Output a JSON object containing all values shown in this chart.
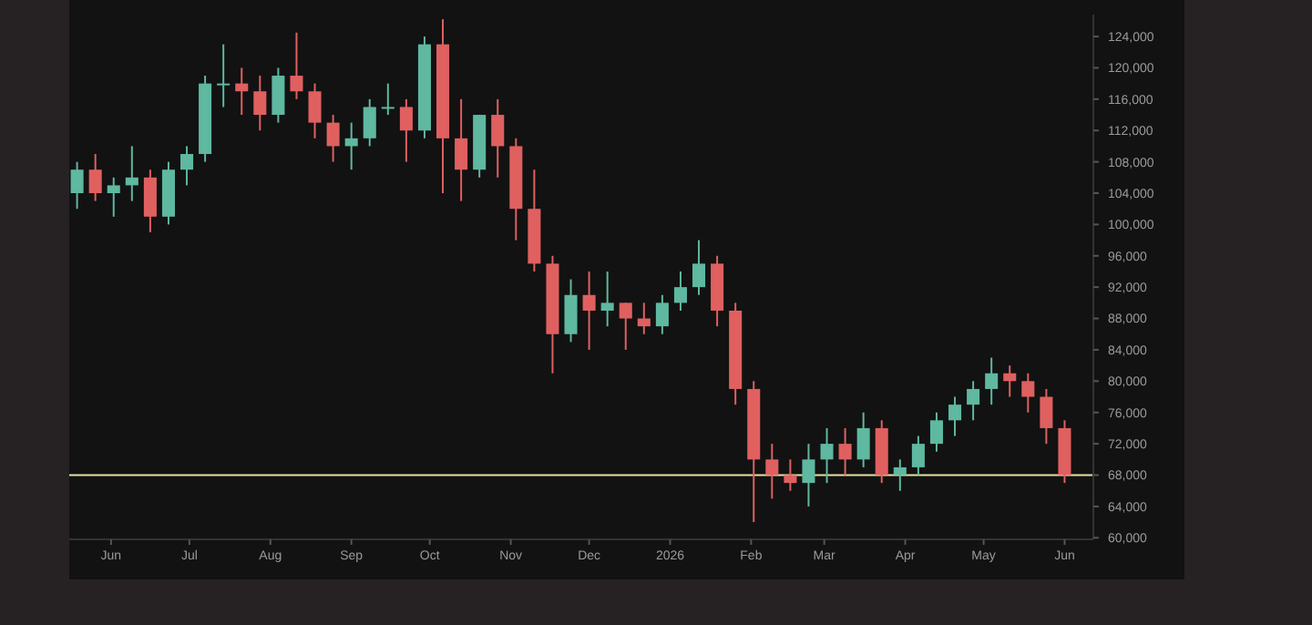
{
  "chart_data": {
    "type": "candlestick",
    "x": [
      "2025-05-19",
      "2025-05-26",
      "2025-06-02",
      "2025-06-09",
      "2025-06-16",
      "2025-06-23",
      "2025-06-30",
      "2025-07-07",
      "2025-07-14",
      "2025-07-21",
      "2025-07-28",
      "2025-08-04",
      "2025-08-11",
      "2025-08-18",
      "2025-08-25",
      "2025-09-01",
      "2025-09-08",
      "2025-09-15",
      "2025-09-22",
      "2025-09-29",
      "2025-10-06",
      "2025-10-13",
      "2025-10-20",
      "2025-10-27",
      "2025-11-03",
      "2025-11-10",
      "2025-11-17",
      "2025-11-24",
      "2025-12-01",
      "2025-12-08",
      "2025-12-15",
      "2025-12-22",
      "2025-12-29",
      "2026-01-05",
      "2026-01-12",
      "2026-01-19",
      "2026-01-26",
      "2026-02-02",
      "2026-02-09",
      "2026-02-16",
      "2026-02-23",
      "2026-03-02",
      "2026-03-09",
      "2026-03-16",
      "2026-03-23",
      "2026-03-30",
      "2026-04-06",
      "2026-04-13",
      "2026-04-20",
      "2026-04-27",
      "2026-05-04",
      "2026-05-11",
      "2026-05-18",
      "2026-05-25",
      "2026-06-01"
    ],
    "ohlc": [
      [
        104000,
        108000,
        102000,
        107000
      ],
      [
        107000,
        109000,
        103000,
        104000
      ],
      [
        104000,
        106000,
        101000,
        105000
      ],
      [
        105000,
        110000,
        103000,
        106000
      ],
      [
        106000,
        107000,
        99000,
        101000
      ],
      [
        101000,
        108000,
        100000,
        107000
      ],
      [
        107000,
        110000,
        105000,
        109000
      ],
      [
        109000,
        119000,
        108000,
        118000
      ],
      [
        118000,
        123000,
        115000,
        118000
      ],
      [
        118000,
        120000,
        114000,
        117000
      ],
      [
        117000,
        119000,
        112000,
        114000
      ],
      [
        114000,
        120000,
        113000,
        119000
      ],
      [
        119000,
        124500,
        116000,
        117000
      ],
      [
        117000,
        118000,
        111000,
        113000
      ],
      [
        113000,
        114000,
        108000,
        110000
      ],
      [
        110000,
        113000,
        107000,
        111000
      ],
      [
        111000,
        116000,
        110000,
        115000
      ],
      [
        115000,
        118000,
        114000,
        115000
      ],
      [
        115000,
        116000,
        108000,
        112000
      ],
      [
        112000,
        124000,
        111000,
        123000
      ],
      [
        123000,
        126200,
        104000,
        111000
      ],
      [
        111000,
        116000,
        103000,
        107000
      ],
      [
        107000,
        114000,
        106000,
        114000
      ],
      [
        114000,
        116000,
        106000,
        110000
      ],
      [
        110000,
        111000,
        98000,
        102000
      ],
      [
        102000,
        107000,
        94000,
        95000
      ],
      [
        95000,
        96000,
        81000,
        86000
      ],
      [
        86000,
        93000,
        85000,
        91000
      ],
      [
        91000,
        94000,
        84000,
        89000
      ],
      [
        89000,
        94000,
        87000,
        90000
      ],
      [
        90000,
        90000,
        84000,
        88000
      ],
      [
        88000,
        90000,
        86000,
        87000
      ],
      [
        87000,
        91000,
        86000,
        90000
      ],
      [
        90000,
        94000,
        89000,
        92000
      ],
      [
        92000,
        98000,
        91000,
        95000
      ],
      [
        95000,
        96000,
        87000,
        89000
      ],
      [
        89000,
        90000,
        77000,
        79000
      ],
      [
        79000,
        80000,
        62000,
        70000
      ],
      [
        70000,
        72000,
        65000,
        68000
      ],
      [
        68000,
        70000,
        66000,
        67000
      ],
      [
        67000,
        72000,
        64000,
        70000
      ],
      [
        70000,
        74000,
        67000,
        72000
      ],
      [
        72000,
        74000,
        68000,
        70000
      ],
      [
        70000,
        76000,
        69000,
        74000
      ],
      [
        74000,
        75000,
        67000,
        68000
      ],
      [
        68000,
        70000,
        66000,
        69000
      ],
      [
        69000,
        73000,
        68000,
        72000
      ],
      [
        72000,
        76000,
        71000,
        75000
      ],
      [
        75000,
        78000,
        73000,
        77000
      ],
      [
        77000,
        80000,
        75000,
        79000
      ],
      [
        79000,
        83000,
        77000,
        81000
      ],
      [
        81000,
        82000,
        78000,
        80000
      ],
      [
        80000,
        81000,
        76000,
        78000
      ],
      [
        78000,
        79000,
        72000,
        74000
      ],
      [
        74000,
        75000,
        67000,
        68000
      ]
    ],
    "xlim": [
      "2025-05-16",
      "2026-06-12"
    ],
    "xticks": [
      {
        "value": "2025-06-01",
        "label": "Jun"
      },
      {
        "value": "2025-07-01",
        "label": "Jul"
      },
      {
        "value": "2025-08-01",
        "label": "Aug"
      },
      {
        "value": "2025-09-01",
        "label": "Sep"
      },
      {
        "value": "2025-10-01",
        "label": "Oct"
      },
      {
        "value": "2025-11-01",
        "label": "Nov"
      },
      {
        "value": "2025-12-01",
        "label": "Dec"
      },
      {
        "value": "2026-01-01",
        "label": "2026"
      },
      {
        "value": "2026-02-01",
        "label": "Feb"
      },
      {
        "value": "2026-03-01",
        "label": "Mar"
      },
      {
        "value": "2026-04-01",
        "label": "Apr"
      },
      {
        "value": "2026-05-01",
        "label": "May"
      },
      {
        "value": "2026-06-01",
        "label": "Jun"
      }
    ],
    "ylim": [
      59800,
      126800
    ],
    "yticks": [
      {
        "value": 60000,
        "label": "60,000"
      },
      {
        "value": 64000,
        "label": "64,000"
      },
      {
        "value": 68000,
        "label": "68,000"
      },
      {
        "value": 72000,
        "label": "72,000"
      },
      {
        "value": 76000,
        "label": "76,000"
      },
      {
        "value": 80000,
        "label": "80,000"
      },
      {
        "value": 84000,
        "label": "84,000"
      },
      {
        "value": 88000,
        "label": "88,000"
      },
      {
        "value": 92000,
        "label": "92,000"
      },
      {
        "value": 96000,
        "label": "96,000"
      },
      {
        "value": 100000,
        "label": "100,000"
      },
      {
        "value": 104000,
        "label": "104,000"
      },
      {
        "value": 108000,
        "label": "108,000"
      },
      {
        "value": 112000,
        "label": "112,000"
      },
      {
        "value": 116000,
        "label": "116,000"
      },
      {
        "value": 120000,
        "label": "120,000"
      },
      {
        "value": 124000,
        "label": "124,000"
      }
    ],
    "ref_lines": [
      {
        "axis": "y",
        "value": 68000,
        "color": "#e8e0a0"
      }
    ],
    "colors": [
      "#5fb8a0",
      "#e06060",
      "#5fb8a0",
      "#5fb8a0",
      "#e06060",
      "#5fb8a0",
      "#5fb8a0",
      "#5fb8a0",
      "#5fb8a0",
      "#e06060",
      "#e06060",
      "#5fb8a0",
      "#e06060",
      "#e06060",
      "#e06060",
      "#5fb8a0",
      "#5fb8a0",
      "#5fb8a0",
      "#e06060",
      "#5fb8a0",
      "#e06060",
      "#e06060",
      "#5fb8a0",
      "#e06060",
      "#e06060",
      "#e06060",
      "#e06060",
      "#5fb8a0",
      "#e06060",
      "#5fb8a0",
      "#e06060",
      "#e06060",
      "#5fb8a0",
      "#5fb8a0",
      "#5fb8a0",
      "#e06060",
      "#e06060",
      "#e06060",
      "#e06060",
      "#e06060",
      "#5fb8a0",
      "#5fb8a0",
      "#e06060",
      "#5fb8a0",
      "#e06060",
      "#5fb8a0",
      "#5fb8a0",
      "#5fb8a0",
      "#5fb8a0",
      "#5fb8a0",
      "#5fb8a0",
      "#e06060",
      "#e06060",
      "#e06060",
      "#e06060"
    ],
    "grid": false
  }
}
